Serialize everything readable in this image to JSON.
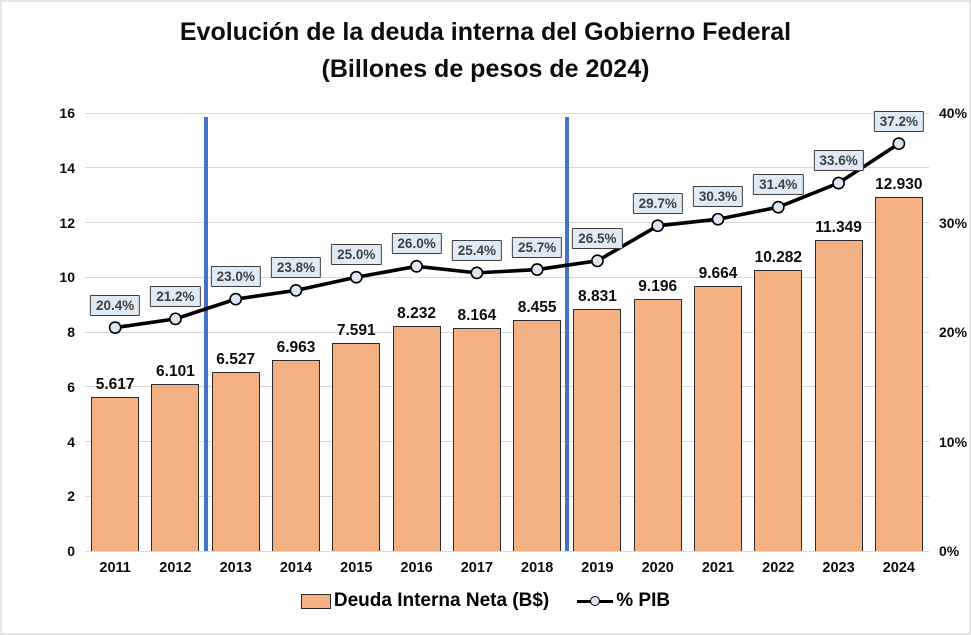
{
  "title": {
    "line1": "Evolución de la deuda interna del Gobierno Federal",
    "line2": "(Billones de pesos de 2024)"
  },
  "legend": {
    "bars": "Deuda Interna Neta (B$)",
    "line": "% PIB"
  },
  "chart_data": {
    "type": "combo",
    "categories": [
      "2011",
      "2012",
      "2013",
      "2014",
      "2015",
      "2016",
      "2017",
      "2018",
      "2019",
      "2020",
      "2021",
      "2022",
      "2023",
      "2024"
    ],
    "series": [
      {
        "name": "Deuda Interna Neta (B$)",
        "type": "bar",
        "values": [
          5.617,
          6.101,
          6.527,
          6.963,
          7.591,
          8.232,
          8.164,
          8.455,
          8.831,
          9.196,
          9.664,
          10.282,
          11.349,
          12.93
        ],
        "labels": [
          "5.617",
          "6.101",
          "6.527",
          "6.963",
          "7.591",
          "8.232",
          "8.164",
          "8.455",
          "8.831",
          "9.196",
          "9.664",
          "10.282",
          "11.349",
          "12.930"
        ],
        "axis": "left"
      },
      {
        "name": "% PIB",
        "type": "line",
        "values": [
          20.4,
          21.2,
          23.0,
          23.8,
          25.0,
          26.0,
          25.4,
          25.7,
          26.5,
          29.7,
          30.3,
          31.4,
          33.6,
          37.2
        ],
        "labels": [
          "20.4%",
          "21.2%",
          "23.0%",
          "23.8%",
          "25.0%",
          "26.0%",
          "25.4%",
          "25.7%",
          "26.5%",
          "29.7%",
          "30.3%",
          "31.4%",
          "33.6%",
          "37.2%"
        ],
        "axis": "right"
      }
    ],
    "left_axis": {
      "min": 0,
      "max": 16,
      "step": 2,
      "ticks": [
        {
          "value": 0,
          "label": "0"
        },
        {
          "value": 2,
          "label": "2"
        },
        {
          "value": 4,
          "label": "4"
        },
        {
          "value": 6,
          "label": "6"
        },
        {
          "value": 8,
          "label": "8"
        },
        {
          "value": 10,
          "label": "10"
        },
        {
          "value": 12,
          "label": "12"
        },
        {
          "value": 14,
          "label": "14"
        },
        {
          "value": 16,
          "label": "16"
        }
      ]
    },
    "right_axis": {
      "min": 0,
      "max": 40,
      "ticks": [
        {
          "value": 0,
          "label": "0%"
        },
        {
          "value": 10,
          "label": "10%"
        },
        {
          "value": 20,
          "label": "20%"
        },
        {
          "value": 30,
          "label": "30%"
        },
        {
          "value": 40,
          "label": "40%"
        }
      ]
    },
    "vlines": [
      2,
      8
    ],
    "grid": true,
    "legend_position": "bottom",
    "colors": {
      "bar_fill": "#F4B183",
      "bar_border": "#2b2b2b",
      "line_color": "#000000",
      "marker_fill": "#DCE6F2",
      "marker_border": "#000000",
      "pct_box_fill": "#DEEBF7",
      "pct_box_border": "#3f3f3f",
      "pct_text": "#404040",
      "vline_color": "#4472C4",
      "gridline": "#D9D9D9",
      "axis_text": "#0d0d0d"
    }
  }
}
